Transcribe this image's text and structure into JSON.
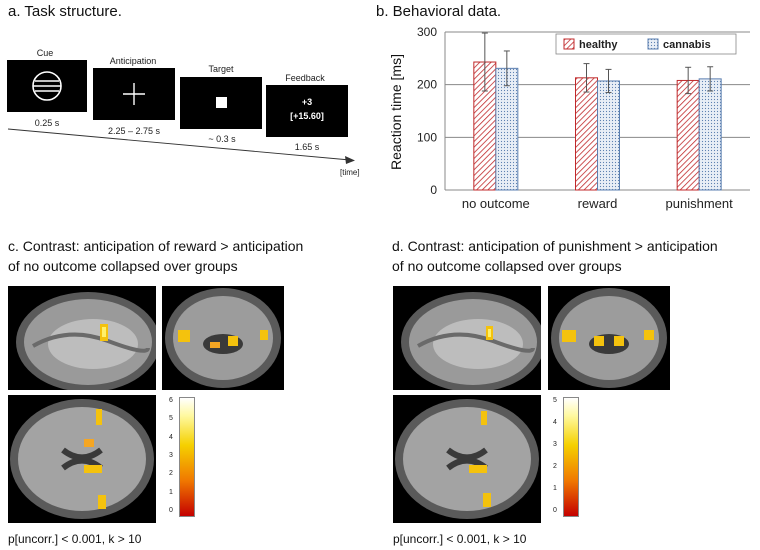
{
  "panel_a": {
    "title": "a. Task structure.",
    "steps": [
      {
        "label": "Cue",
        "duration": "0.25 s"
      },
      {
        "label": "Anticipation",
        "duration": "2.25 – 2.75 s"
      },
      {
        "label": "Target",
        "duration": "~ 0.3 s"
      },
      {
        "label": "Feedback",
        "duration": "1.65 s",
        "line1": "+3",
        "line2": "[+15.60]"
      }
    ],
    "time_label": "[time]"
  },
  "panel_b": {
    "title": "b. Behavioral data."
  },
  "chart_data": {
    "type": "bar",
    "categories": [
      "no outcome",
      "reward",
      "punishment"
    ],
    "series": [
      {
        "name": "healthy",
        "values": [
          243,
          213,
          208
        ],
        "errors": [
          55,
          27,
          25
        ],
        "color": "#c0292b",
        "pattern": "hatch"
      },
      {
        "name": "cannabis",
        "values": [
          231,
          207,
          211
        ],
        "errors": [
          33,
          22,
          23
        ],
        "color": "#5b7fb0",
        "pattern": "dots"
      }
    ],
    "ylabel": "Reaction time [ms]",
    "ylim": [
      0,
      300
    ],
    "yticks": [
      0,
      100,
      200,
      300
    ],
    "grid": true,
    "legend": "top-right"
  },
  "panel_c": {
    "title_line1": "c. Contrast: anticipation of reward > anticipation",
    "title_line2": "of no outcome collapsed over groups",
    "colorbar_ticks": [
      "6",
      "5",
      "4",
      "3",
      "2",
      "1",
      "0"
    ],
    "footnote": "p[uncorr.]  < 0.001, k > 10"
  },
  "panel_d": {
    "title_line1": "d. Contrast: anticipation of punishment > anticipation",
    "title_line2": "of no outcome collapsed over groups",
    "colorbar_ticks": [
      "5",
      "4",
      "3",
      "2",
      "1",
      "0"
    ],
    "footnote": "p[uncorr.]  < 0.001, k > 10"
  }
}
